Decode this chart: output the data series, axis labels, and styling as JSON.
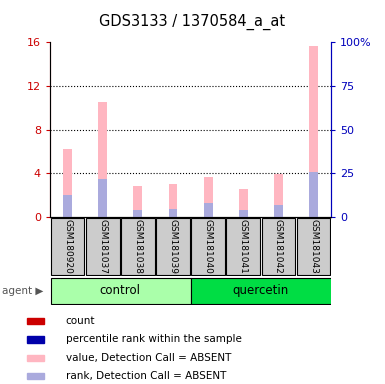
{
  "title": "GDS3133 / 1370584_a_at",
  "samples": [
    "GSM180920",
    "GSM181037",
    "GSM181038",
    "GSM181039",
    "GSM181040",
    "GSM181041",
    "GSM181042",
    "GSM181043"
  ],
  "pink_values": [
    6.2,
    10.5,
    2.8,
    3.0,
    3.7,
    2.6,
    3.9,
    15.7
  ],
  "blue_values": [
    2.0,
    3.5,
    0.6,
    0.7,
    1.3,
    0.6,
    1.1,
    4.1
  ],
  "ylim_left": [
    0,
    16
  ],
  "ylim_right": [
    0,
    100
  ],
  "yticks_left": [
    0,
    4,
    8,
    12,
    16
  ],
  "yticks_right": [
    0,
    25,
    50,
    75,
    100
  ],
  "ytick_labels_left": [
    "0",
    "4",
    "8",
    "12",
    "16"
  ],
  "ytick_labels_right": [
    "0",
    "25",
    "50",
    "75",
    "100%"
  ],
  "left_axis_color": "#CC0000",
  "right_axis_color": "#0000BB",
  "grid_color": "#000000",
  "plot_bg": "#FFFFFF",
  "bar_bg_color": "#CCCCCC",
  "pink_color": "#FFB6C1",
  "blue_color": "#AAAADD",
  "red_color": "#CC0000",
  "dark_blue_color": "#0000AA",
  "control_color": "#AAFFAA",
  "quercetin_color": "#00DD44",
  "fig_width": 3.85,
  "fig_height": 3.84,
  "bar_width": 0.25,
  "legend_labels": [
    "count",
    "percentile rank within the sample",
    "value, Detection Call = ABSENT",
    "rank, Detection Call = ABSENT"
  ],
  "legend_colors": [
    "#CC0000",
    "#0000AA",
    "#FFB6C1",
    "#AAAADD"
  ]
}
